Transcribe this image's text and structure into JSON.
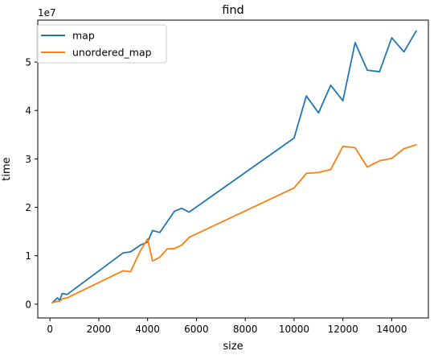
{
  "chart_data": {
    "type": "line",
    "title": "find",
    "xlabel": "size",
    "ylabel": "time",
    "y_offset_label": "1e7",
    "xlim": [
      -500,
      15500
    ],
    "ylim": [
      -2850000,
      58650000
    ],
    "xticks": [
      0,
      2000,
      4000,
      6000,
      8000,
      10000,
      12000,
      14000
    ],
    "yticks": [
      0,
      10000000,
      20000000,
      30000000,
      40000000,
      50000000
    ],
    "ytick_labels": [
      "0",
      "1",
      "2",
      "3",
      "4",
      "5"
    ],
    "legend_position": "upper-left",
    "grid": false,
    "series": [
      {
        "name": "map",
        "color": "#1f77b4",
        "x": [
          100,
          300,
          400,
          500,
          700,
          3000,
          3300,
          3700,
          4000,
          4200,
          4500,
          5100,
          5400,
          5700,
          10000,
          10500,
          11000,
          11500,
          12000,
          12500,
          13000,
          13500,
          14000,
          14500,
          15000
        ],
        "y": [
          300000,
          1300000,
          800000,
          2200000,
          2000000,
          10600000,
          10800000,
          12200000,
          12800000,
          15200000,
          14800000,
          19200000,
          19800000,
          19000000,
          34300000,
          43000000,
          39500000,
          45200000,
          42000000,
          54000000,
          48300000,
          48000000,
          55000000,
          52100000,
          56400000
        ]
      },
      {
        "name": "unordered_map",
        "color": "#ff7f0e",
        "x": [
          100,
          300,
          400,
          500,
          700,
          3000,
          3300,
          3700,
          4000,
          4200,
          4500,
          4800,
          5100,
          5400,
          5700,
          10000,
          10500,
          11000,
          11500,
          12000,
          12500,
          13000,
          13500,
          14000,
          14500,
          15000
        ],
        "y": [
          300000,
          600000,
          600000,
          1100000,
          1300000,
          6900000,
          6700000,
          11000000,
          13500000,
          8900000,
          9700000,
          11400000,
          11500000,
          12200000,
          13800000,
          24000000,
          27000000,
          27200000,
          27800000,
          32600000,
          32300000,
          28300000,
          29600000,
          30100000,
          32100000,
          32900000
        ]
      }
    ]
  }
}
